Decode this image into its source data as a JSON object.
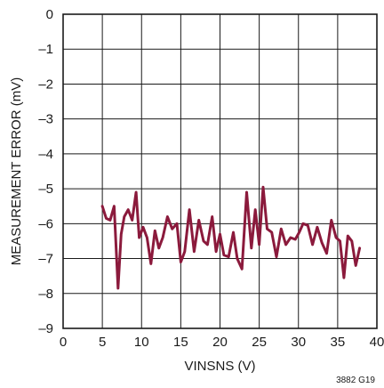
{
  "figure_id": "3882 G19",
  "chart_data": {
    "type": "line",
    "title": "",
    "xlabel": "VINSNS (V)",
    "ylabel": "MEASUREMENT ERROR (mV)",
    "xlim": [
      0,
      40
    ],
    "ylim": [
      -9,
      0
    ],
    "xticks": [
      0,
      5,
      10,
      15,
      20,
      25,
      30,
      35,
      40
    ],
    "yticks": [
      0,
      -1,
      -2,
      -3,
      -4,
      -5,
      -6,
      -7,
      -8,
      -9
    ],
    "xtick_labels": [
      "0",
      "5",
      "10",
      "15",
      "20",
      "25",
      "30",
      "35",
      "40"
    ],
    "ytick_labels": [
      "0",
      "–1",
      "–2",
      "–3",
      "–4",
      "–5",
      "–6",
      "–7",
      "–8",
      "–9"
    ],
    "grid": true,
    "legend": "none",
    "series": [
      {
        "color": "#8b1a3c",
        "x": [
          5.0,
          5.5,
          6.0,
          6.5,
          7.0,
          7.4,
          7.8,
          8.3,
          8.8,
          9.3,
          9.7,
          10.2,
          10.7,
          11.2,
          11.7,
          12.2,
          12.7,
          13.3,
          13.9,
          14.5,
          15.0,
          15.5,
          16.1,
          16.7,
          17.3,
          17.9,
          18.4,
          19.0,
          19.5,
          20.0,
          20.5,
          21.1,
          21.7,
          22.2,
          22.8,
          23.4,
          24.0,
          24.5,
          25.0,
          25.5,
          26.0,
          26.6,
          27.2,
          27.8,
          28.4,
          29.0,
          29.6,
          30.1,
          30.6,
          31.2,
          31.8,
          32.4,
          33.0,
          33.6,
          34.2,
          34.8,
          35.3,
          35.8,
          36.3,
          36.8,
          37.3,
          37.8
        ],
        "values": [
          -5.5,
          -5.85,
          -5.9,
          -5.5,
          -7.85,
          -6.3,
          -5.8,
          -5.6,
          -5.9,
          -5.1,
          -6.4,
          -6.1,
          -6.4,
          -7.15,
          -6.2,
          -6.7,
          -6.4,
          -5.8,
          -6.15,
          -6.0,
          -7.1,
          -6.8,
          -5.6,
          -6.8,
          -5.9,
          -6.5,
          -6.6,
          -5.8,
          -6.8,
          -6.3,
          -6.9,
          -6.95,
          -6.25,
          -7.0,
          -7.3,
          -5.1,
          -6.7,
          -5.6,
          -6.6,
          -4.95,
          -6.15,
          -6.25,
          -6.95,
          -6.15,
          -6.6,
          -6.4,
          -6.45,
          -6.25,
          -6.0,
          -6.05,
          -6.6,
          -6.1,
          -6.55,
          -6.85,
          -5.9,
          -6.4,
          -6.5,
          -7.55,
          -6.35,
          -6.5,
          -7.2,
          -6.7
        ]
      }
    ]
  }
}
